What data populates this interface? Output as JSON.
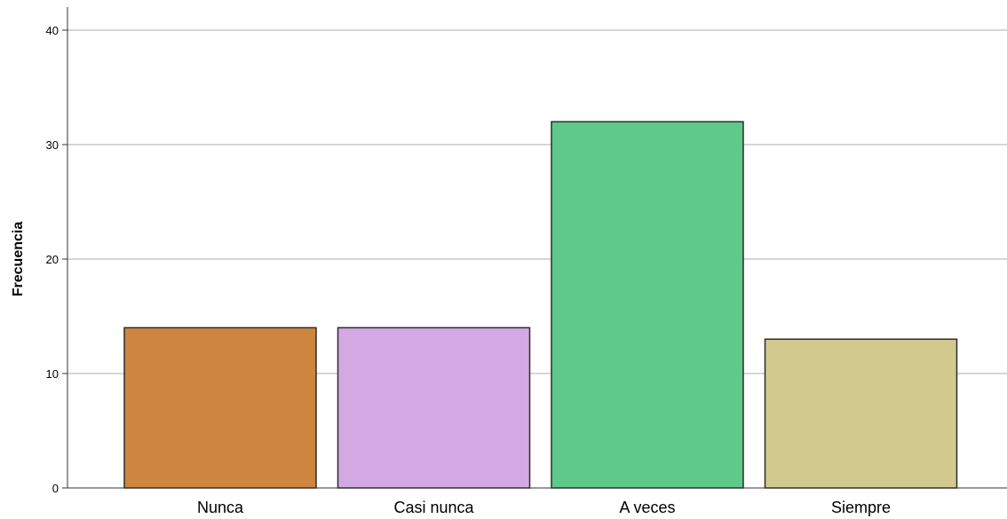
{
  "chart_data": {
    "type": "bar",
    "categories": [
      "Nunca",
      "Casi nunca",
      "A veces",
      "Siempre"
    ],
    "values": [
      14,
      14,
      32,
      13
    ],
    "colors": [
      "#cd853f",
      "#d2a9e3",
      "#5ec98a",
      "#d2c98e"
    ],
    "title": "",
    "xlabel": "",
    "ylabel": "Frecuencia",
    "ylim": [
      0,
      42
    ],
    "yticks": [
      0,
      10,
      20,
      30,
      40
    ],
    "grid": true
  }
}
